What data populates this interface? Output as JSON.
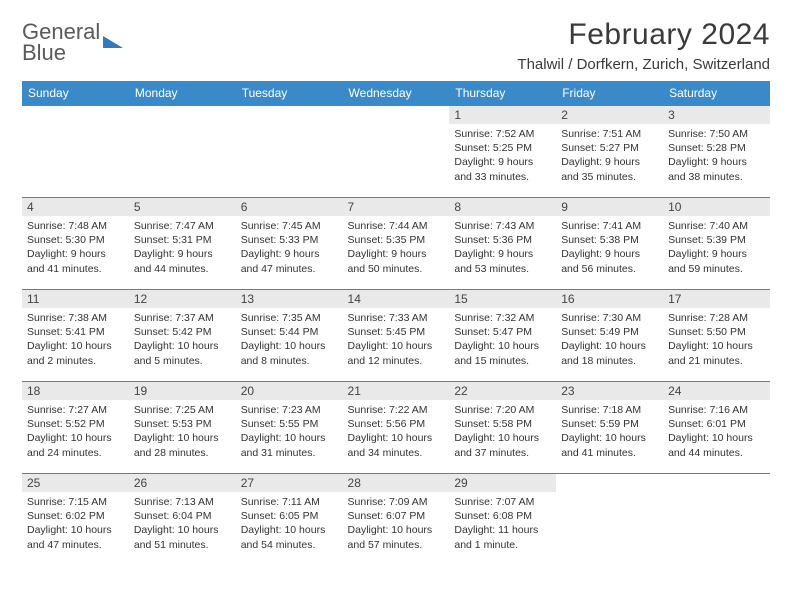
{
  "logo": {
    "line1": "General",
    "line2": "Blue"
  },
  "title": "February 2024",
  "location": "Thalwil / Dorfkern, Zurich, Switzerland",
  "colors": {
    "header_bg": "#3a8ac9",
    "header_text": "#ffffff",
    "border": "#3a8ac9",
    "daynum_bg": "#e9e9e9",
    "logo_gray": "#5a5a5a",
    "logo_blue": "#2f7ac0"
  },
  "day_headers": [
    "Sunday",
    "Monday",
    "Tuesday",
    "Wednesday",
    "Thursday",
    "Friday",
    "Saturday"
  ],
  "weeks": [
    [
      {
        "day": "",
        "sunrise": "",
        "sunset": "",
        "daylight": ""
      },
      {
        "day": "",
        "sunrise": "",
        "sunset": "",
        "daylight": ""
      },
      {
        "day": "",
        "sunrise": "",
        "sunset": "",
        "daylight": ""
      },
      {
        "day": "",
        "sunrise": "",
        "sunset": "",
        "daylight": ""
      },
      {
        "day": "1",
        "sunrise": "7:52 AM",
        "sunset": "5:25 PM",
        "daylight": "9 hours and 33 minutes."
      },
      {
        "day": "2",
        "sunrise": "7:51 AM",
        "sunset": "5:27 PM",
        "daylight": "9 hours and 35 minutes."
      },
      {
        "day": "3",
        "sunrise": "7:50 AM",
        "sunset": "5:28 PM",
        "daylight": "9 hours and 38 minutes."
      }
    ],
    [
      {
        "day": "4",
        "sunrise": "7:48 AM",
        "sunset": "5:30 PM",
        "daylight": "9 hours and 41 minutes."
      },
      {
        "day": "5",
        "sunrise": "7:47 AM",
        "sunset": "5:31 PM",
        "daylight": "9 hours and 44 minutes."
      },
      {
        "day": "6",
        "sunrise": "7:45 AM",
        "sunset": "5:33 PM",
        "daylight": "9 hours and 47 minutes."
      },
      {
        "day": "7",
        "sunrise": "7:44 AM",
        "sunset": "5:35 PM",
        "daylight": "9 hours and 50 minutes."
      },
      {
        "day": "8",
        "sunrise": "7:43 AM",
        "sunset": "5:36 PM",
        "daylight": "9 hours and 53 minutes."
      },
      {
        "day": "9",
        "sunrise": "7:41 AM",
        "sunset": "5:38 PM",
        "daylight": "9 hours and 56 minutes."
      },
      {
        "day": "10",
        "sunrise": "7:40 AM",
        "sunset": "5:39 PM",
        "daylight": "9 hours and 59 minutes."
      }
    ],
    [
      {
        "day": "11",
        "sunrise": "7:38 AM",
        "sunset": "5:41 PM",
        "daylight": "10 hours and 2 minutes."
      },
      {
        "day": "12",
        "sunrise": "7:37 AM",
        "sunset": "5:42 PM",
        "daylight": "10 hours and 5 minutes."
      },
      {
        "day": "13",
        "sunrise": "7:35 AM",
        "sunset": "5:44 PM",
        "daylight": "10 hours and 8 minutes."
      },
      {
        "day": "14",
        "sunrise": "7:33 AM",
        "sunset": "5:45 PM",
        "daylight": "10 hours and 12 minutes."
      },
      {
        "day": "15",
        "sunrise": "7:32 AM",
        "sunset": "5:47 PM",
        "daylight": "10 hours and 15 minutes."
      },
      {
        "day": "16",
        "sunrise": "7:30 AM",
        "sunset": "5:49 PM",
        "daylight": "10 hours and 18 minutes."
      },
      {
        "day": "17",
        "sunrise": "7:28 AM",
        "sunset": "5:50 PM",
        "daylight": "10 hours and 21 minutes."
      }
    ],
    [
      {
        "day": "18",
        "sunrise": "7:27 AM",
        "sunset": "5:52 PM",
        "daylight": "10 hours and 24 minutes."
      },
      {
        "day": "19",
        "sunrise": "7:25 AM",
        "sunset": "5:53 PM",
        "daylight": "10 hours and 28 minutes."
      },
      {
        "day": "20",
        "sunrise": "7:23 AM",
        "sunset": "5:55 PM",
        "daylight": "10 hours and 31 minutes."
      },
      {
        "day": "21",
        "sunrise": "7:22 AM",
        "sunset": "5:56 PM",
        "daylight": "10 hours and 34 minutes."
      },
      {
        "day": "22",
        "sunrise": "7:20 AM",
        "sunset": "5:58 PM",
        "daylight": "10 hours and 37 minutes."
      },
      {
        "day": "23",
        "sunrise": "7:18 AM",
        "sunset": "5:59 PM",
        "daylight": "10 hours and 41 minutes."
      },
      {
        "day": "24",
        "sunrise": "7:16 AM",
        "sunset": "6:01 PM",
        "daylight": "10 hours and 44 minutes."
      }
    ],
    [
      {
        "day": "25",
        "sunrise": "7:15 AM",
        "sunset": "6:02 PM",
        "daylight": "10 hours and 47 minutes."
      },
      {
        "day": "26",
        "sunrise": "7:13 AM",
        "sunset": "6:04 PM",
        "daylight": "10 hours and 51 minutes."
      },
      {
        "day": "27",
        "sunrise": "7:11 AM",
        "sunset": "6:05 PM",
        "daylight": "10 hours and 54 minutes."
      },
      {
        "day": "28",
        "sunrise": "7:09 AM",
        "sunset": "6:07 PM",
        "daylight": "10 hours and 57 minutes."
      },
      {
        "day": "29",
        "sunrise": "7:07 AM",
        "sunset": "6:08 PM",
        "daylight": "11 hours and 1 minute."
      },
      {
        "day": "",
        "sunrise": "",
        "sunset": "",
        "daylight": ""
      },
      {
        "day": "",
        "sunrise": "",
        "sunset": "",
        "daylight": ""
      }
    ]
  ],
  "labels": {
    "sunrise": "Sunrise: ",
    "sunset": "Sunset: ",
    "daylight": "Daylight: "
  }
}
